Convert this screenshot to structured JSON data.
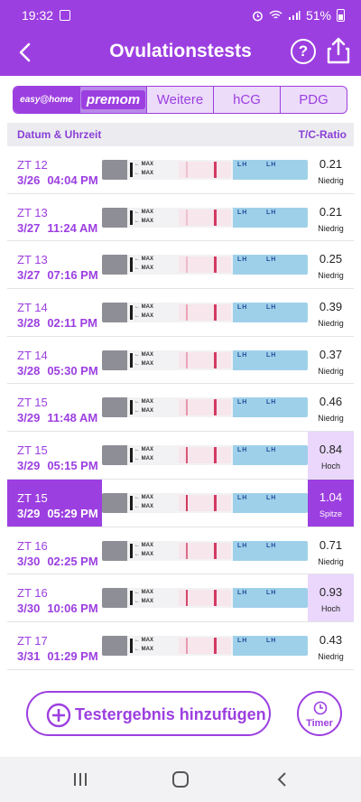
{
  "status_bar": {
    "time": "19:32",
    "battery": "51%"
  },
  "app_bar": {
    "title": "Ovulationstests"
  },
  "tabs": [
    {
      "label": "easy@home",
      "active": true
    },
    {
      "label": "premom",
      "active": false
    },
    {
      "label": "Weitere",
      "active": false
    },
    {
      "label": "hCG",
      "active": false
    },
    {
      "label": "PDG",
      "active": false
    }
  ],
  "table_header": {
    "date_time": "Datum & Uhrzeit",
    "ratio": "T/C-Ratio"
  },
  "rows": [
    {
      "zt": "ZT 12",
      "date": "3/26",
      "time": "04:04 PM",
      "ratio": "0.21",
      "status": "Niedrig",
      "level": "low",
      "selected": false,
      "t_line": 0.21
    },
    {
      "zt": "ZT 13",
      "date": "3/27",
      "time": "11:24 AM",
      "ratio": "0.21",
      "status": "Niedrig",
      "level": "low",
      "selected": false,
      "t_line": 0.21
    },
    {
      "zt": "ZT 13",
      "date": "3/27",
      "time": "07:16 PM",
      "ratio": "0.25",
      "status": "Niedrig",
      "level": "low",
      "selected": false,
      "t_line": 0.25
    },
    {
      "zt": "ZT 14",
      "date": "3/28",
      "time": "02:11 PM",
      "ratio": "0.39",
      "status": "Niedrig",
      "level": "low",
      "selected": false,
      "t_line": 0.39
    },
    {
      "zt": "ZT 14",
      "date": "3/28",
      "time": "05:30 PM",
      "ratio": "0.37",
      "status": "Niedrig",
      "level": "low",
      "selected": false,
      "t_line": 0.37
    },
    {
      "zt": "ZT 15",
      "date": "3/29",
      "time": "11:48 AM",
      "ratio": "0.46",
      "status": "Niedrig",
      "level": "low",
      "selected": false,
      "t_line": 0.46
    },
    {
      "zt": "ZT 15",
      "date": "3/29",
      "time": "05:15 PM",
      "ratio": "0.84",
      "status": "Hoch",
      "level": "high",
      "selected": false,
      "t_line": 0.84
    },
    {
      "zt": "ZT 15",
      "date": "3/29",
      "time": "05:29 PM",
      "ratio": "1.04",
      "status": "Spitze",
      "level": "peak",
      "selected": true,
      "t_line": 1.0
    },
    {
      "zt": "ZT 16",
      "date": "3/30",
      "time": "02:25 PM",
      "ratio": "0.71",
      "status": "Niedrig",
      "level": "low",
      "selected": false,
      "t_line": 0.71
    },
    {
      "zt": "ZT 16",
      "date": "3/30",
      "time": "10:06 PM",
      "ratio": "0.93",
      "status": "Hoch",
      "level": "high",
      "selected": false,
      "t_line": 0.93
    },
    {
      "zt": "ZT 17",
      "date": "3/31",
      "time": "01:29 PM",
      "ratio": "0.43",
      "status": "Niedrig",
      "level": "low",
      "selected": false,
      "t_line": 0.43
    }
  ],
  "strip_text": {
    "max": "MAX",
    "lh_label": "LH"
  },
  "actions": {
    "add_label": "Testergebnis hinzufügen",
    "timer_label": "Timer"
  },
  "colors": {
    "primary": "#9c3fe0",
    "high_bg": "#ead7fb",
    "strip_line": "#d23a62",
    "strip_blue": "#9fd0ea"
  }
}
